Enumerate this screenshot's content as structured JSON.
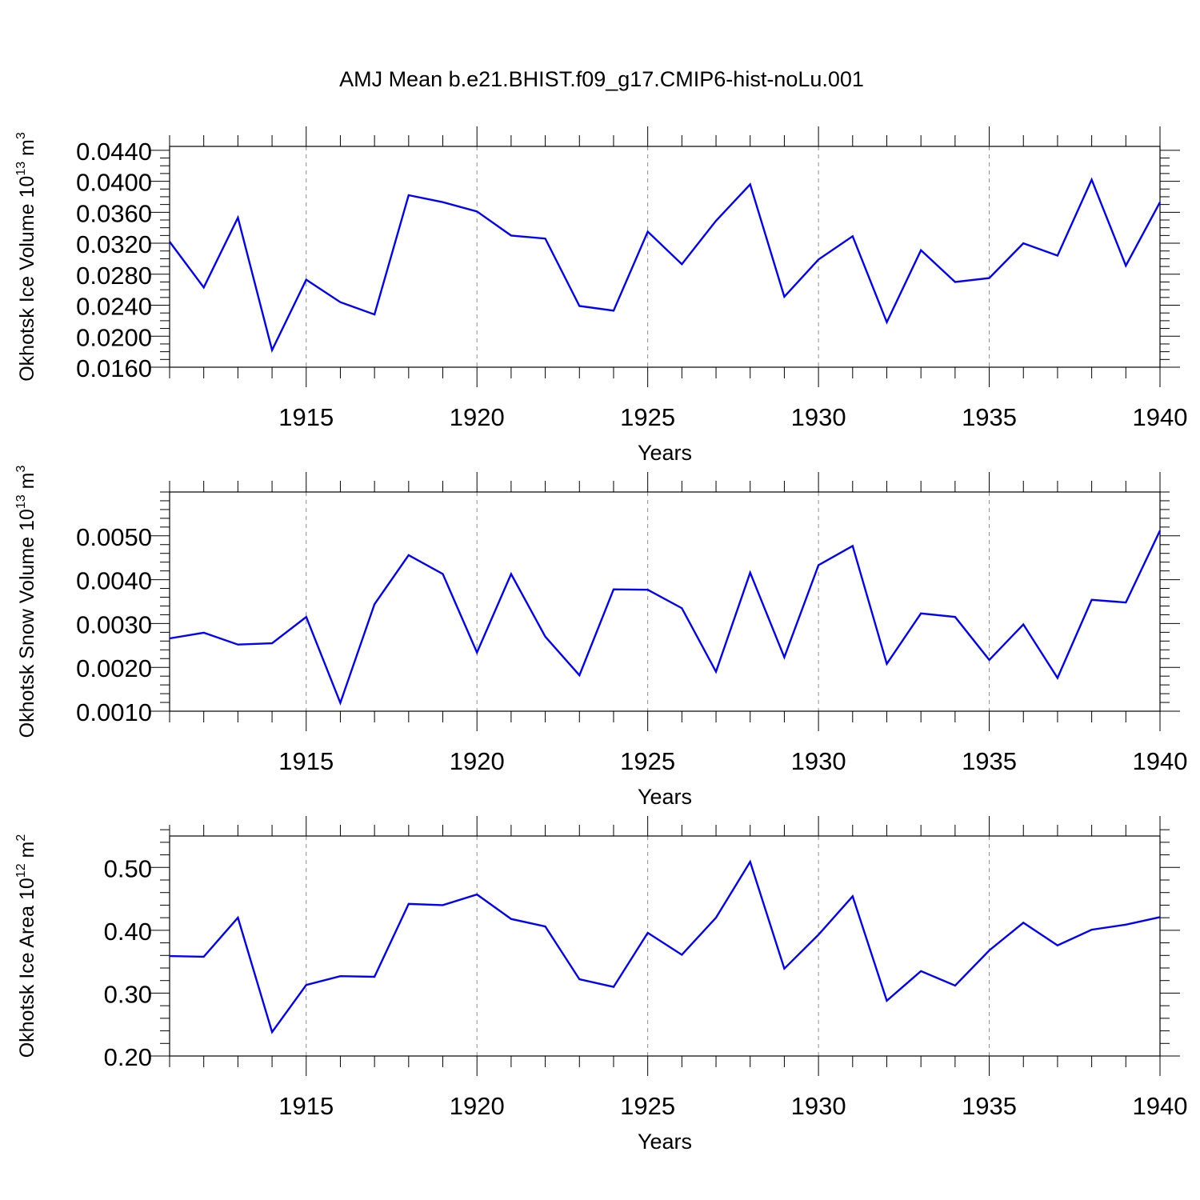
{
  "figure": {
    "title": "AMJ Mean b.e21.BHIST.f09_g17.CMIP6-hist-noLu.001"
  },
  "chart_data": [
    {
      "type": "line",
      "ylabel": "Okhotsk Ice Volume 10",
      "ylabel_exp": "13",
      "ylabel_unit": " m",
      "ylabel_unit_exp": "3",
      "xlabel": "Years",
      "xlim": [
        1911,
        1940
      ],
      "ylim": [
        0.016,
        0.0445
      ],
      "xticks": [
        1915,
        1920,
        1925,
        1930,
        1935,
        1940
      ],
      "xtick_labels": [
        "1915",
        "1920",
        "1925",
        "1930",
        "1935",
        "1940"
      ],
      "yticks": [
        0.016,
        0.02,
        0.024,
        0.028,
        0.032,
        0.036,
        0.04,
        0.044
      ],
      "ytick_labels": [
        "0.0160",
        "0.0200",
        "0.0240",
        "0.0280",
        "0.0320",
        "0.0360",
        "0.0400",
        "0.0440"
      ],
      "x_minor_step": 1,
      "y_minor_step": 0.001,
      "grid": "vertical-dashed",
      "line_color": "#0000ff",
      "x": [
        1911,
        1912,
        1913,
        1914,
        1915,
        1916,
        1917,
        1918,
        1919,
        1920,
        1921,
        1922,
        1923,
        1924,
        1925,
        1926,
        1927,
        1928,
        1929,
        1930,
        1931,
        1932,
        1933,
        1934,
        1935,
        1936,
        1937,
        1938,
        1939,
        1940
      ],
      "values": [
        0.0322,
        0.0263,
        0.0353,
        0.0182,
        0.0273,
        0.0244,
        0.0228,
        0.0382,
        0.0373,
        0.0361,
        0.033,
        0.0326,
        0.0239,
        0.0233,
        0.0335,
        0.0293,
        0.0349,
        0.0396,
        0.0251,
        0.0299,
        0.0329,
        0.0218,
        0.0311,
        0.027,
        0.0275,
        0.032,
        0.0304,
        0.0402,
        0.0291,
        0.0373
      ]
    },
    {
      "type": "line",
      "ylabel": "Okhotsk Snow Volume 10",
      "ylabel_exp": "13",
      "ylabel_unit": " m",
      "ylabel_unit_exp": "3",
      "xlabel": "Years",
      "xlim": [
        1911,
        1940
      ],
      "ylim": [
        0.001,
        0.006
      ],
      "xticks": [
        1915,
        1920,
        1925,
        1930,
        1935,
        1940
      ],
      "xtick_labels": [
        "1915",
        "1920",
        "1925",
        "1930",
        "1935",
        "1940"
      ],
      "yticks": [
        0.001,
        0.002,
        0.003,
        0.004,
        0.005
      ],
      "ytick_labels": [
        "0.0010",
        "0.0020",
        "0.0030",
        "0.0040",
        "0.0050"
      ],
      "x_minor_step": 1,
      "y_minor_step": 0.0002,
      "grid": "vertical-dashed",
      "line_color": "#0000ff",
      "x": [
        1911,
        1912,
        1913,
        1914,
        1915,
        1916,
        1917,
        1918,
        1919,
        1920,
        1921,
        1922,
        1923,
        1924,
        1925,
        1926,
        1927,
        1928,
        1929,
        1930,
        1931,
        1932,
        1933,
        1934,
        1935,
        1936,
        1937,
        1938,
        1939,
        1940
      ],
      "values": [
        0.00266,
        0.00279,
        0.00252,
        0.00255,
        0.00315,
        0.00119,
        0.00344,
        0.00456,
        0.00413,
        0.00234,
        0.00413,
        0.0027,
        0.00182,
        0.00378,
        0.00377,
        0.00335,
        0.0019,
        0.00416,
        0.00223,
        0.00433,
        0.00477,
        0.00208,
        0.00323,
        0.00315,
        0.00217,
        0.00298,
        0.00176,
        0.00354,
        0.00348,
        0.00512
      ]
    },
    {
      "type": "line",
      "ylabel": "Okhotsk Ice Area 10",
      "ylabel_exp": "12",
      "ylabel_unit": " m",
      "ylabel_unit_exp": "2",
      "xlabel": "Years",
      "xlim": [
        1911,
        1940
      ],
      "ylim": [
        0.2,
        0.55
      ],
      "xticks": [
        1915,
        1920,
        1925,
        1930,
        1935,
        1940
      ],
      "xtick_labels": [
        "1915",
        "1920",
        "1925",
        "1930",
        "1935",
        "1940"
      ],
      "yticks": [
        0.2,
        0.3,
        0.4,
        0.5
      ],
      "ytick_labels": [
        "0.20",
        "0.30",
        "0.40",
        "0.50"
      ],
      "x_minor_step": 1,
      "y_minor_step": 0.02,
      "grid": "vertical-dashed",
      "line_color": "#0000ff",
      "x": [
        1911,
        1912,
        1913,
        1914,
        1915,
        1916,
        1917,
        1918,
        1919,
        1920,
        1921,
        1922,
        1923,
        1924,
        1925,
        1926,
        1927,
        1928,
        1929,
        1930,
        1931,
        1932,
        1933,
        1934,
        1935,
        1936,
        1937,
        1938,
        1939,
        1940
      ],
      "values": [
        0.359,
        0.358,
        0.42,
        0.238,
        0.313,
        0.327,
        0.326,
        0.442,
        0.44,
        0.457,
        0.418,
        0.406,
        0.322,
        0.31,
        0.396,
        0.361,
        0.42,
        0.509,
        0.339,
        0.393,
        0.454,
        0.288,
        0.335,
        0.312,
        0.368,
        0.412,
        0.376,
        0.401,
        0.409,
        0.421
      ]
    }
  ]
}
